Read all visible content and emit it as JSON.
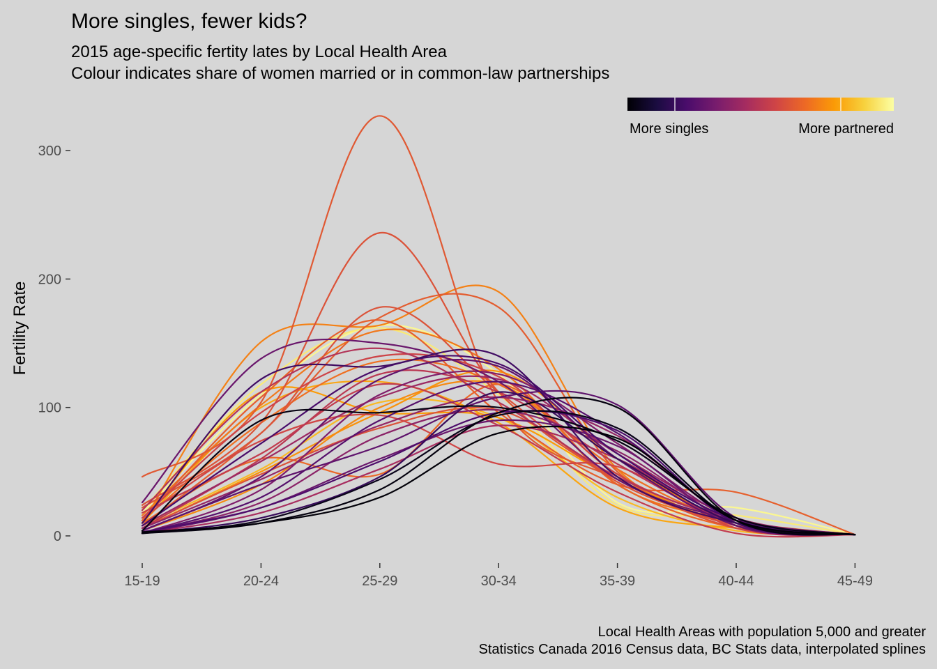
{
  "title": "More singles, fewer kids?",
  "subtitle_line1": "2015 age-specific fertity lates by Local Health Area",
  "subtitle_line2": "Colour indicates share of women married or in common-law partnerships",
  "caption_line1": "Local Health Areas with population 5,000 and greater",
  "caption_line2": "Statistics Canada 2016 Census data, BC Stats data, interpolated splines",
  "legend": {
    "low_label": "More singles",
    "high_label": "More partnered",
    "palette": [
      "#000004",
      "#1b0c41",
      "#4a0c6b",
      "#781c6d",
      "#a52c60",
      "#cf4446",
      "#ed6925",
      "#fb9b06",
      "#f7d13d",
      "#fcffa4"
    ]
  },
  "chart_data": {
    "type": "line",
    "title": "More singles, fewer kids?",
    "xlabel": "",
    "ylabel": "Fertility Rate",
    "categories": [
      "15-19",
      "20-24",
      "25-29",
      "30-34",
      "35-39",
      "40-44",
      "45-49"
    ],
    "y_ticks": [
      0,
      100,
      200,
      300
    ],
    "ylim": [
      -20,
      330
    ],
    "grid": false,
    "legend_position": "top-right",
    "color_variable": "share of women married or in common-law partnerships (0 = more singles, 1 = more partnered)",
    "series": [
      {
        "values": [
          46,
          104,
          327,
          104,
          44,
          8,
          1
        ],
        "share": 0.62
      },
      {
        "values": [
          24,
          88,
          236,
          112,
          44,
          8,
          1
        ],
        "share": 0.6
      },
      {
        "values": [
          22,
          80,
          178,
          112,
          42,
          10,
          1
        ],
        "share": 0.6
      },
      {
        "values": [
          8,
          80,
          170,
          178,
          50,
          10,
          1
        ],
        "share": 0.63
      },
      {
        "values": [
          10,
          151,
          164,
          190,
          52,
          10,
          1
        ],
        "share": 0.72
      },
      {
        "values": [
          12,
          108,
          168,
          96,
          40,
          34,
          1
        ],
        "share": 0.64
      },
      {
        "values": [
          20,
          118,
          162,
          110,
          24,
          16,
          1
        ],
        "share": 0.95
      },
      {
        "values": [
          18,
          110,
          164,
          126,
          26,
          22,
          1
        ],
        "share": 0.98
      },
      {
        "values": [
          16,
          102,
          160,
          130,
          40,
          12,
          1
        ],
        "share": 0.7
      },
      {
        "values": [
          26,
          138,
          150,
          120,
          44,
          12,
          1
        ],
        "share": 0.3
      },
      {
        "values": [
          20,
          112,
          146,
          104,
          46,
          12,
          1
        ],
        "share": 0.48
      },
      {
        "values": [
          14,
          96,
          140,
          124,
          48,
          12,
          1
        ],
        "share": 0.55
      },
      {
        "values": [
          10,
          122,
          132,
          140,
          46,
          10,
          1
        ],
        "share": 0.2
      },
      {
        "values": [
          12,
          88,
          136,
          118,
          52,
          10,
          1
        ],
        "share": 0.68
      },
      {
        "values": [
          8,
          72,
          130,
          134,
          64,
          12,
          1
        ],
        "share": 0.22
      },
      {
        "values": [
          6,
          60,
          126,
          112,
          56,
          10,
          1
        ],
        "share": 0.5
      },
      {
        "values": [
          4,
          46,
          122,
          132,
          60,
          8,
          1
        ],
        "share": 0.28
      },
      {
        "values": [
          2,
          36,
          110,
          126,
          72,
          12,
          1
        ],
        "share": 0.35
      },
      {
        "values": [
          6,
          50,
          96,
          128,
          60,
          10,
          1
        ],
        "share": 0.76
      },
      {
        "values": [
          4,
          40,
          100,
          118,
          48,
          8,
          1
        ],
        "share": 0.74
      },
      {
        "values": [
          8,
          58,
          108,
          122,
          64,
          14,
          1
        ],
        "share": 0.42
      },
      {
        "values": [
          2,
          30,
          90,
          120,
          80,
          12,
          1
        ],
        "share": 0.25
      },
      {
        "values": [
          6,
          44,
          86,
          108,
          78,
          12,
          1
        ],
        "share": 0.4
      },
      {
        "values": [
          4,
          40,
          70,
          108,
          102,
          14,
          1
        ],
        "share": 0.27
      },
      {
        "values": [
          2,
          26,
          78,
          98,
          66,
          10,
          1
        ],
        "share": 0.38
      },
      {
        "values": [
          3,
          22,
          58,
          96,
          82,
          10,
          1
        ],
        "share": 0.23
      },
      {
        "values": [
          2,
          22,
          60,
          90,
          70,
          8,
          1
        ],
        "share": 0.3
      },
      {
        "values": [
          2,
          18,
          52,
          86,
          60,
          8,
          1
        ],
        "share": 0.45
      },
      {
        "values": [
          2,
          14,
          46,
          112,
          60,
          10,
          1
        ],
        "share": 0.18
      },
      {
        "values": [
          2,
          10,
          36,
          96,
          100,
          12,
          1
        ],
        "share": 0.02
      },
      {
        "values": [
          2,
          12,
          44,
          94,
          84,
          12,
          1
        ],
        "share": 0.04
      },
      {
        "values": [
          3,
          10,
          30,
          80,
          76,
          12,
          1
        ],
        "share": 0.01
      },
      {
        "values": [
          4,
          90,
          96,
          100,
          74,
          14,
          1
        ],
        "share": 0.03
      },
      {
        "values": [
          10,
          60,
          48,
          118,
          40,
          6,
          1
        ],
        "share": 0.66
      },
      {
        "values": [
          14,
          74,
          94,
          56,
          54,
          6,
          1
        ],
        "share": 0.56
      },
      {
        "values": [
          10,
          100,
          120,
          88,
          22,
          6,
          1
        ],
        "share": 0.8
      },
      {
        "values": [
          12,
          112,
          96,
          92,
          44,
          8,
          1
        ],
        "share": 0.78
      },
      {
        "values": [
          18,
          64,
          118,
          86,
          34,
          2,
          1
        ],
        "share": 0.52
      },
      {
        "values": [
          8,
          52,
          104,
          92,
          30,
          4,
          1
        ],
        "share": 0.84
      },
      {
        "values": [
          6,
          48,
          84,
          98,
          44,
          6,
          1
        ],
        "share": 0.6
      }
    ]
  }
}
